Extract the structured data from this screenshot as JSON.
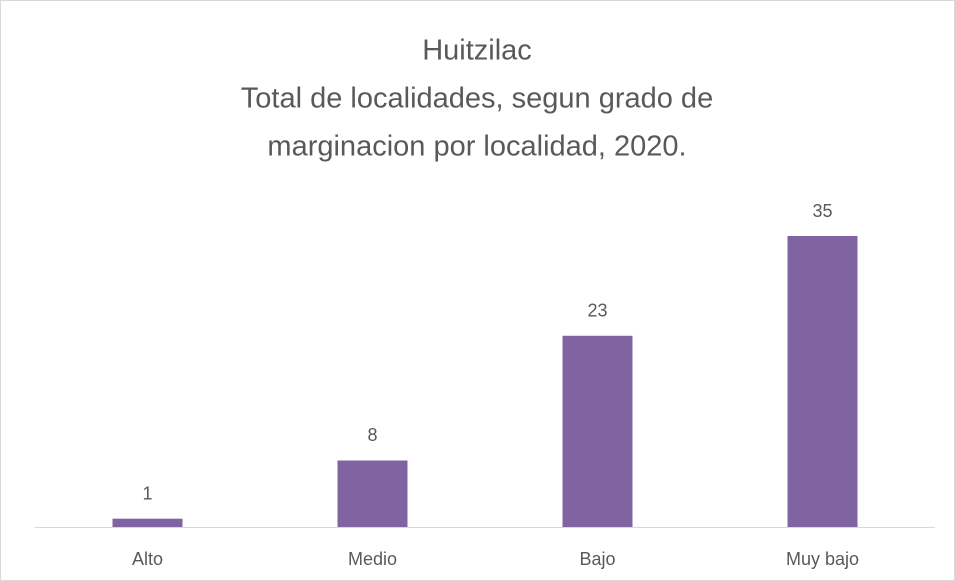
{
  "chart_data": {
    "type": "bar",
    "title": [
      "Huitzilac",
      "Total de localidades, segun grado de",
      "marginacion por localidad, 2020."
    ],
    "categories": [
      "Alto",
      "Medio",
      "Bajo",
      "Muy bajo"
    ],
    "values": [
      1,
      8,
      23,
      35
    ],
    "color": "#8064a2"
  }
}
